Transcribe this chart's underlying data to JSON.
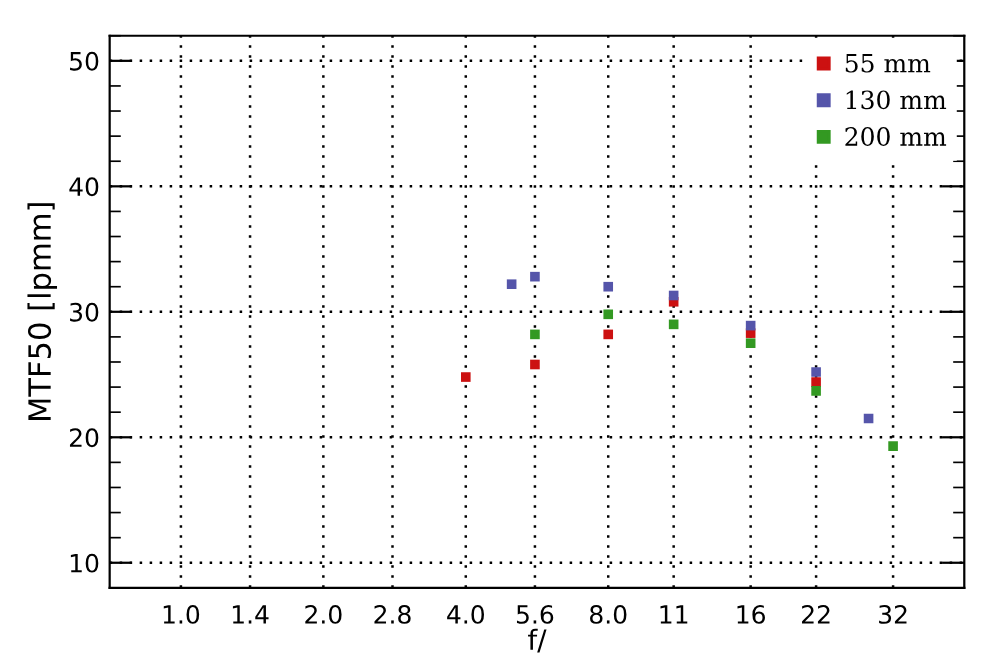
{
  "chart_data": {
    "type": "scatter",
    "xlabel": "f/",
    "ylabel": "MTF50 [lpmm]",
    "log": "x",
    "grid": true,
    "legend": "top right",
    "marker": "square",
    "xlim": [
      0.707,
      45.25
    ],
    "ylim": [
      8,
      52
    ],
    "xticks": [
      {
        "value": 1,
        "label": "1.0"
      },
      1.4,
      {
        "value": 2,
        "label": "2.0"
      },
      2.8,
      {
        "value": 4,
        "label": "4.0"
      },
      5.6,
      {
        "value": 8,
        "label": "8.0"
      },
      11,
      16,
      22,
      32
    ],
    "yticks": [
      10,
      20,
      30,
      40,
      50
    ],
    "series": [
      {
        "name": "55 mm",
        "color": "#cc1111",
        "x": [
          4,
          5.6,
          8,
          11,
          16,
          22
        ],
        "values": [
          24.8,
          25.8,
          28.2,
          30.8,
          28.3,
          24.4
        ]
      },
      {
        "name": "130 mm",
        "color": "#5555aa",
        "x": [
          5.0,
          5.6,
          8,
          11,
          16,
          22,
          28.4
        ],
        "values": [
          32.2,
          32.8,
          32.0,
          31.3,
          28.9,
          25.2,
          21.5
        ]
      },
      {
        "name": "200 mm",
        "color": "#339922",
        "x": [
          5.6,
          8,
          11,
          16,
          22,
          32
        ],
        "values": [
          28.2,
          29.8,
          29.0,
          27.5,
          23.7,
          19.3
        ]
      }
    ]
  }
}
